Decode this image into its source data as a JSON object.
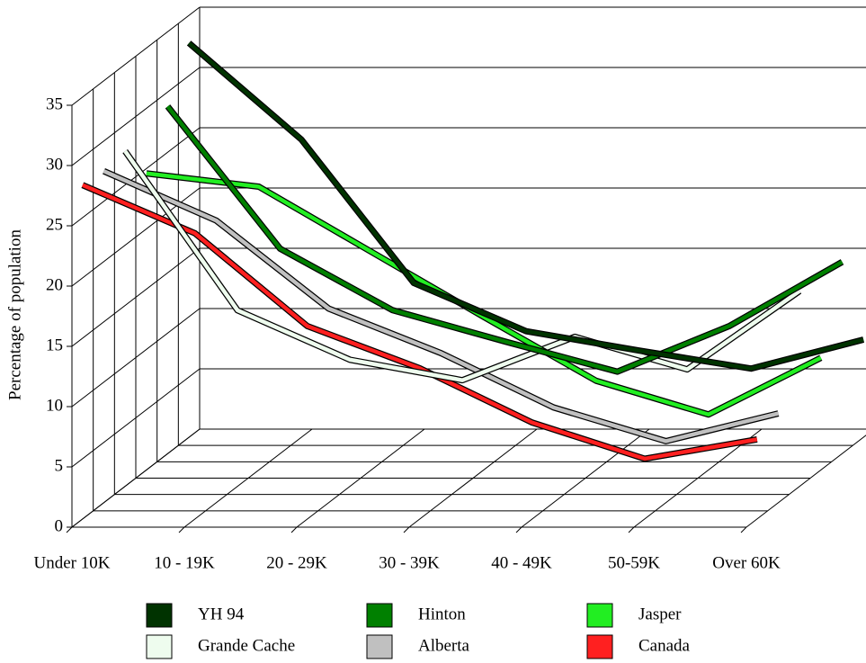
{
  "chart_data": {
    "type": "line3d",
    "y_label": "Percentage of population",
    "categories": [
      "Under 10K",
      "10 - 19K",
      "20 - 29K",
      "30 - 39K",
      "40 - 49K",
      "50-59K",
      "Over 60K"
    ],
    "ylim": [
      0,
      35
    ],
    "yticks": [
      0,
      5,
      10,
      15,
      20,
      25,
      30,
      35
    ],
    "series": [
      {
        "name": "YH 94",
        "color": "#003300",
        "values": [
          32.7,
          24.7,
          12.8,
          8.8,
          7.2,
          5.7,
          8.1
        ]
      },
      {
        "name": "Hinton",
        "color": "#008000",
        "values": [
          28.8,
          17.0,
          11.9,
          9.3,
          6.8,
          10.6,
          15.9
        ]
      },
      {
        "name": "Jasper",
        "color": "#22ee22",
        "values": [
          24.6,
          23.5,
          18.1,
          12.7,
          7.4,
          4.6,
          9.3
        ]
      },
      {
        "name": "Grande Cache",
        "color": "#eefcee",
        "values": [
          27.8,
          14.6,
          10.5,
          8.8,
          12.4,
          9.7,
          16.2
        ]
      },
      {
        "name": "Alberta",
        "color": "#c0c0c0",
        "values": [
          27.5,
          23.4,
          16.1,
          12.4,
          7.9,
          5.1,
          7.4
        ]
      },
      {
        "name": "Canada",
        "color": "#ff2020",
        "values": [
          27.7,
          23.7,
          16.0,
          12.5,
          8.0,
          5.0,
          6.6
        ]
      }
    ]
  }
}
